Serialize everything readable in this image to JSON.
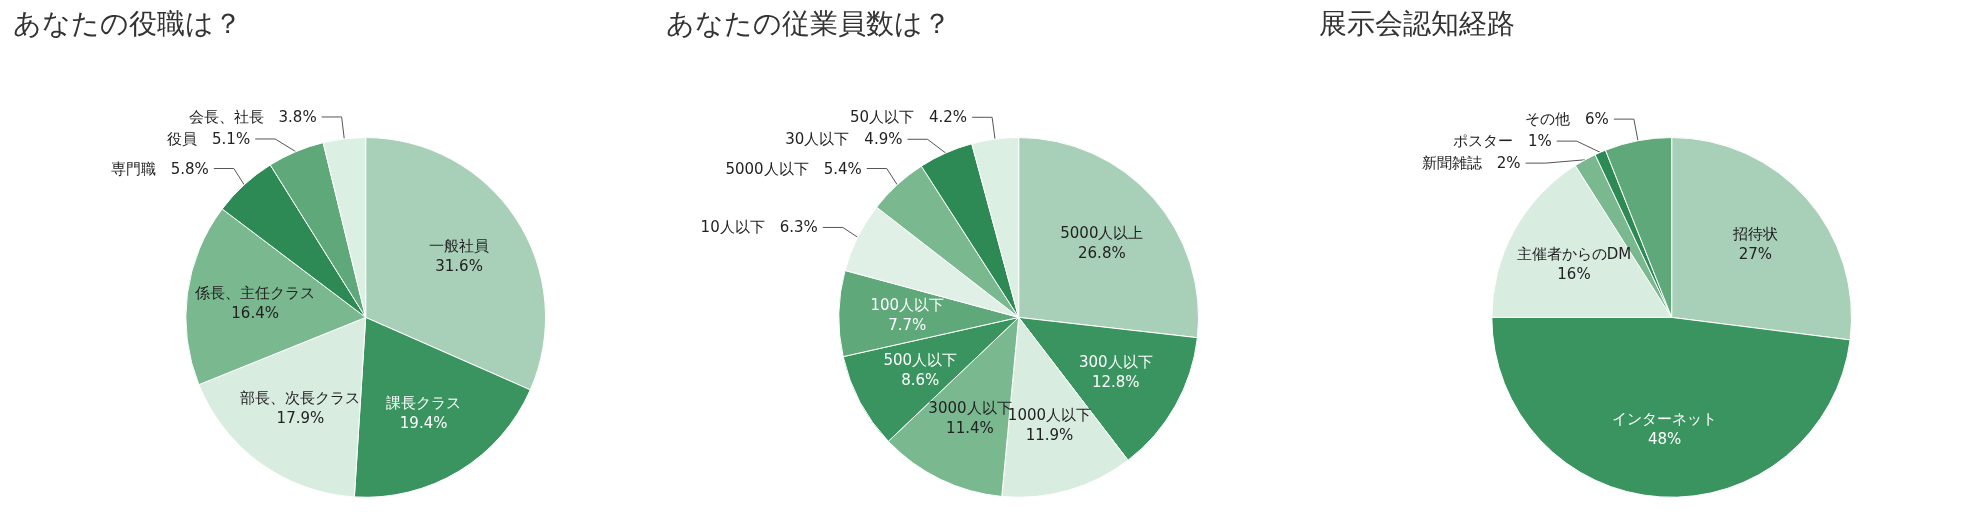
{
  "chart_data": [
    {
      "type": "pie",
      "title": "あなたの役職は？",
      "categories": [
        "一般社員",
        "課長クラス",
        "部長、次長クラス",
        "係長、主任クラス",
        "専門職",
        "役員",
        "会長、社長"
      ],
      "values": [
        31.6,
        19.4,
        17.9,
        16.4,
        5.8,
        5.1,
        3.8
      ],
      "value_labels": [
        "31.6%",
        "19.4%",
        "17.9%",
        "16.4%",
        "5.8%",
        "5.1%",
        "3.8%"
      ],
      "colors": [
        "#a8d0b8",
        "#3a9460",
        "#d9ece0",
        "#7ab890",
        "#2e8a55",
        "#5ea87a",
        "#dcefe3"
      ]
    },
    {
      "type": "pie",
      "title": "あなたの従業員数は？",
      "categories": [
        "5000人以上",
        "300人以下",
        "1000人以下",
        "3000人以下",
        "500人以下",
        "100人以下",
        "10人以下",
        "5000人以下",
        "30人以下",
        "50人以下"
      ],
      "values": [
        26.8,
        12.8,
        11.9,
        11.4,
        8.6,
        7.7,
        6.3,
        5.4,
        4.9,
        4.2
      ],
      "value_labels": [
        "26.8%",
        "12.8%",
        "11.9%",
        "11.4%",
        "8.6%",
        "7.7%",
        "6.3%",
        "5.4%",
        "4.9%",
        "4.2%"
      ],
      "colors": [
        "#a8d0b8",
        "#3a9460",
        "#d9ece0",
        "#7ab890",
        "#3a9460",
        "#5ea87a",
        "#e0f0e6",
        "#7ab890",
        "#2e8a55",
        "#dcefe3"
      ]
    },
    {
      "type": "pie",
      "title": "展示会認知経路",
      "categories": [
        "招待状",
        "インターネット",
        "主催者からのDM",
        "新聞雑誌",
        "ポスター",
        "その他"
      ],
      "values": [
        27,
        48,
        16,
        2,
        1,
        6
      ],
      "value_labels": [
        "27%",
        "48%",
        "16%",
        "2%",
        "1%",
        "6%"
      ],
      "colors": [
        "#a8d0b8",
        "#3a9460",
        "#d9ece0",
        "#7ab890",
        "#2e8a55",
        "#5ea87a"
      ]
    }
  ]
}
